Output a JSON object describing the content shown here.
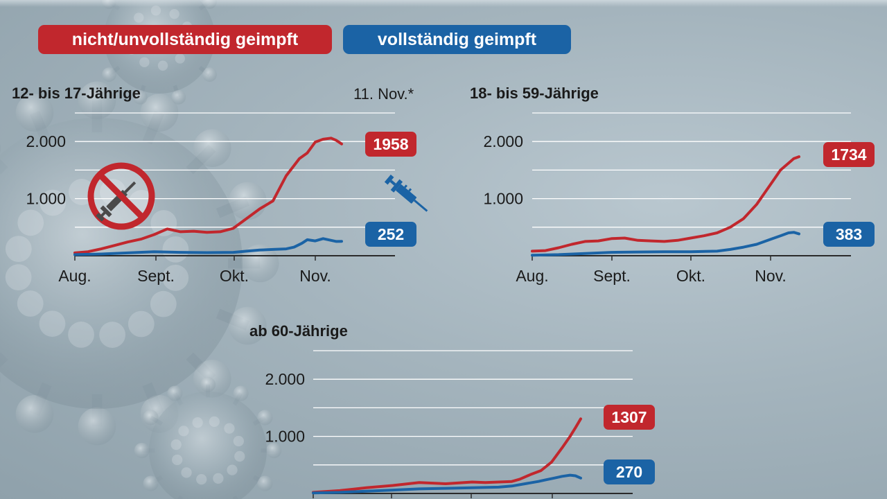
{
  "legend": {
    "unvaccinated": "nicht/unvollständig geimpft",
    "vaccinated": "vollständig geimpft"
  },
  "date_note": "11. Nov.*",
  "colors": {
    "unvaccinated": "#c1272d",
    "vaccinated": "#1b63a5",
    "gridline": "#ffffff",
    "axis": "#2a2a2a"
  },
  "icons": [
    "no-vaccine-icon",
    "syringe-icon",
    "coronavirus-background"
  ],
  "chart_data": [
    {
      "type": "line",
      "title": "12- bis 17-Jährige",
      "x_tick_labels": [
        "Aug.",
        "Sept.",
        "Okt.",
        "Nov."
      ],
      "y_tick_labels": [
        "2.000",
        "1.000"
      ],
      "ylim": [
        0,
        2500
      ],
      "grid": true,
      "series": [
        {
          "name": "nicht/unvollständig geimpft",
          "end_label": "1958",
          "x": [
            0,
            5,
            10,
            15,
            20,
            25,
            30,
            35,
            40,
            45,
            50,
            55,
            60,
            65,
            70,
            75,
            80,
            85,
            88,
            91,
            94,
            97,
            99,
            101
          ],
          "values": [
            50,
            70,
            120,
            180,
            240,
            290,
            370,
            470,
            420,
            430,
            410,
            420,
            480,
            650,
            820,
            960,
            1400,
            1700,
            1800,
            1990,
            2040,
            2060,
            2020,
            1958
          ]
        },
        {
          "name": "vollständig geimpft",
          "end_label": "252",
          "x": [
            0,
            10,
            20,
            30,
            40,
            50,
            60,
            65,
            70,
            75,
            80,
            83,
            86,
            88,
            91,
            94,
            97,
            99,
            101
          ],
          "values": [
            20,
            30,
            50,
            70,
            60,
            55,
            60,
            80,
            100,
            110,
            120,
            150,
            220,
            280,
            260,
            300,
            270,
            250,
            252
          ]
        }
      ]
    },
    {
      "type": "line",
      "title": "18- bis 59-Jährige",
      "x_tick_labels": [
        "Aug.",
        "Sept.",
        "Okt.",
        "Nov."
      ],
      "y_tick_labels": [
        "2.000",
        "1.000"
      ],
      "ylim": [
        0,
        2500
      ],
      "grid": true,
      "series": [
        {
          "name": "nicht/unvollständig geimpft",
          "end_label": "1734",
          "x": [
            0,
            5,
            10,
            15,
            20,
            25,
            30,
            35,
            40,
            45,
            50,
            55,
            60,
            65,
            70,
            75,
            80,
            85,
            88,
            91,
            94,
            97,
            99,
            101
          ],
          "values": [
            80,
            90,
            140,
            200,
            250,
            260,
            300,
            310,
            270,
            260,
            250,
            270,
            310,
            350,
            400,
            500,
            650,
            900,
            1100,
            1300,
            1500,
            1620,
            1700,
            1734
          ]
        },
        {
          "name": "vollständig geimpft",
          "end_label": "383",
          "x": [
            0,
            10,
            20,
            30,
            40,
            50,
            60,
            70,
            75,
            80,
            85,
            88,
            91,
            94,
            97,
            99,
            101
          ],
          "values": [
            10,
            20,
            40,
            60,
            65,
            70,
            70,
            80,
            110,
            150,
            200,
            250,
            300,
            350,
            400,
            410,
            383
          ]
        }
      ]
    },
    {
      "type": "line",
      "title": "ab 60-Jährige",
      "x_tick_labels": [],
      "y_tick_labels": [
        "2.000",
        "1.000"
      ],
      "ylim": [
        0,
        2500
      ],
      "grid": true,
      "series": [
        {
          "name": "nicht/unvollständig geimpft",
          "end_label": "1307",
          "x": [
            0,
            10,
            20,
            30,
            40,
            50,
            60,
            65,
            70,
            75,
            78,
            82,
            86,
            90,
            94,
            97,
            99,
            101
          ],
          "values": [
            20,
            50,
            100,
            140,
            190,
            170,
            200,
            190,
            200,
            210,
            250,
            330,
            400,
            550,
            800,
            1000,
            1150,
            1307
          ]
        },
        {
          "name": "vollständig geimpft",
          "end_label": "270",
          "x": [
            0,
            10,
            20,
            30,
            40,
            50,
            60,
            70,
            75,
            80,
            85,
            88,
            91,
            94,
            97,
            99,
            101
          ],
          "values": [
            10,
            20,
            40,
            60,
            80,
            90,
            100,
            110,
            130,
            170,
            210,
            240,
            270,
            300,
            320,
            310,
            270
          ]
        }
      ]
    }
  ]
}
